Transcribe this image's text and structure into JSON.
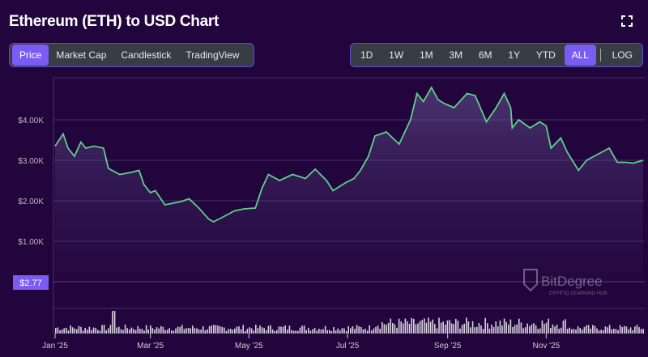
{
  "header": {
    "title": "Ethereum (ETH) to USD Chart",
    "fullscreen_icon": "fullscreen-icon"
  },
  "chart_tabs": [
    {
      "label": "Price",
      "active": true
    },
    {
      "label": "Market Cap"
    },
    {
      "label": "Candlestick"
    },
    {
      "label": "TradingView"
    }
  ],
  "ranges": [
    {
      "label": "1D"
    },
    {
      "label": "1W"
    },
    {
      "label": "1M"
    },
    {
      "label": "3M"
    },
    {
      "label": "6M"
    },
    {
      "label": "1Y"
    },
    {
      "label": "YTD"
    },
    {
      "label": "ALL",
      "active": true
    }
  ],
  "log_label": "LOG",
  "colors": {
    "line": "#5fd08a",
    "accent": "#7a5cf5",
    "background": "#22053c"
  },
  "watermark": {
    "brand": "BitDegree",
    "tagline": "CRYPTO LEARNING HUB"
  },
  "chart_data": {
    "type": "line",
    "y_ticks": [
      "$1.00K",
      "$2.00K",
      "$3.00K",
      "$4.00K"
    ],
    "y_tick_values": [
      1000,
      2000,
      3000,
      4000
    ],
    "price_marker": "$2.77",
    "ylim": [
      0,
      5000
    ],
    "x_ticks": [
      "Jan '25",
      "Mar '25",
      "May '25",
      "Jul '25",
      "Sep '25",
      "Nov '25"
    ],
    "x_tick_dates": [
      "2025-01-01",
      "2025-03-01",
      "2025-05-01",
      "2025-07-01",
      "2025-09-01",
      "2025-11-01"
    ],
    "xlim": [
      "2025-01-01",
      "2025-12-31"
    ],
    "grid": true,
    "series": [
      {
        "points": [
          [
            "2025-01-01",
            3350
          ],
          [
            "2025-01-06",
            3650
          ],
          [
            "2025-01-09",
            3300
          ],
          [
            "2025-01-13",
            3100
          ],
          [
            "2025-01-17",
            3450
          ],
          [
            "2025-01-20",
            3300
          ],
          [
            "2025-01-25",
            3350
          ],
          [
            "2025-01-31",
            3300
          ],
          [
            "2025-02-03",
            2800
          ],
          [
            "2025-02-10",
            2650
          ],
          [
            "2025-02-17",
            2700
          ],
          [
            "2025-02-22",
            2750
          ],
          [
            "2025-02-25",
            2400
          ],
          [
            "2025-03-01",
            2200
          ],
          [
            "2025-03-04",
            2250
          ],
          [
            "2025-03-10",
            1900
          ],
          [
            "2025-03-20",
            1980
          ],
          [
            "2025-03-25",
            2050
          ],
          [
            "2025-03-31",
            1820
          ],
          [
            "2025-04-06",
            1550
          ],
          [
            "2025-04-09",
            1480
          ],
          [
            "2025-04-15",
            1600
          ],
          [
            "2025-04-22",
            1750
          ],
          [
            "2025-04-28",
            1800
          ],
          [
            "2025-05-05",
            1820
          ],
          [
            "2025-05-09",
            2300
          ],
          [
            "2025-05-13",
            2650
          ],
          [
            "2025-05-20",
            2500
          ],
          [
            "2025-05-28",
            2650
          ],
          [
            "2025-06-05",
            2550
          ],
          [
            "2025-06-11",
            2780
          ],
          [
            "2025-06-18",
            2500
          ],
          [
            "2025-06-22",
            2250
          ],
          [
            "2025-06-30",
            2450
          ],
          [
            "2025-07-05",
            2550
          ],
          [
            "2025-07-09",
            2750
          ],
          [
            "2025-07-14",
            3100
          ],
          [
            "2025-07-18",
            3600
          ],
          [
            "2025-07-25",
            3700
          ],
          [
            "2025-08-02",
            3400
          ],
          [
            "2025-08-09",
            4000
          ],
          [
            "2025-08-13",
            4650
          ],
          [
            "2025-08-17",
            4450
          ],
          [
            "2025-08-22",
            4800
          ],
          [
            "2025-08-26",
            4500
          ],
          [
            "2025-08-30",
            4400
          ],
          [
            "2025-09-05",
            4300
          ],
          [
            "2025-09-13",
            4650
          ],
          [
            "2025-09-18",
            4600
          ],
          [
            "2025-09-25",
            3950
          ],
          [
            "2025-10-01",
            4300
          ],
          [
            "2025-10-06",
            4650
          ],
          [
            "2025-10-10",
            4300
          ],
          [
            "2025-10-11",
            3800
          ],
          [
            "2025-10-15",
            4000
          ],
          [
            "2025-10-22",
            3800
          ],
          [
            "2025-10-28",
            3950
          ],
          [
            "2025-11-01",
            3850
          ],
          [
            "2025-11-04",
            3300
          ],
          [
            "2025-11-10",
            3550
          ],
          [
            "2025-11-14",
            3200
          ],
          [
            "2025-11-21",
            2750
          ],
          [
            "2025-11-26",
            3000
          ],
          [
            "2025-12-03",
            3150
          ],
          [
            "2025-12-10",
            3300
          ],
          [
            "2025-12-15",
            2950
          ],
          [
            "2025-12-20",
            2950
          ],
          [
            "2025-12-25",
            2930
          ],
          [
            "2025-12-31",
            3000
          ]
        ]
      }
    ]
  }
}
